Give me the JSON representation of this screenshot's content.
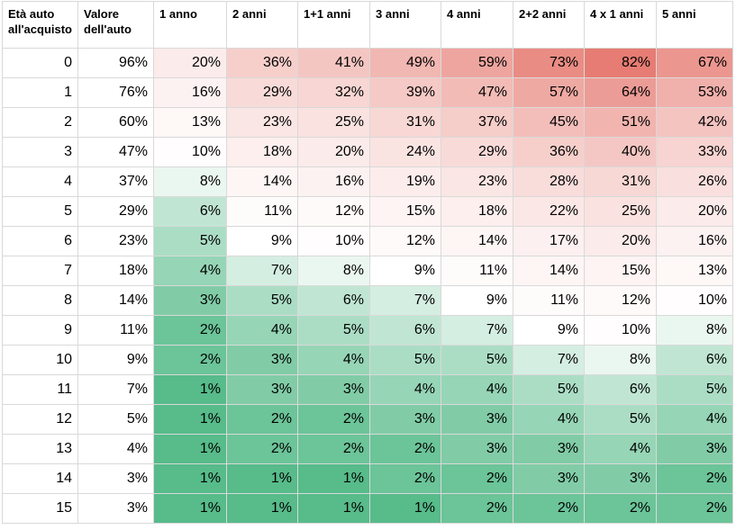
{
  "headers": [
    "Età auto all'acquisto",
    "Valore dell'auto",
    "1 anno",
    "2 anni",
    "1+1 anni",
    "3 anni",
    "4 anni",
    "2+2 anni",
    "4 x 1 anni",
    "5 anni"
  ],
  "rows": [
    [
      "0",
      "96%",
      "20%",
      "36%",
      "41%",
      "49%",
      "59%",
      "73%",
      "82%",
      "67%"
    ],
    [
      "1",
      "76%",
      "16%",
      "29%",
      "32%",
      "39%",
      "47%",
      "57%",
      "64%",
      "53%"
    ],
    [
      "2",
      "60%",
      "13%",
      "23%",
      "25%",
      "31%",
      "37%",
      "45%",
      "51%",
      "42%"
    ],
    [
      "3",
      "47%",
      "10%",
      "18%",
      "20%",
      "24%",
      "29%",
      "36%",
      "40%",
      "33%"
    ],
    [
      "4",
      "37%",
      "8%",
      "14%",
      "16%",
      "19%",
      "23%",
      "28%",
      "31%",
      "26%"
    ],
    [
      "5",
      "29%",
      "6%",
      "11%",
      "12%",
      "15%",
      "18%",
      "22%",
      "25%",
      "20%"
    ],
    [
      "6",
      "23%",
      "5%",
      "9%",
      "10%",
      "12%",
      "14%",
      "17%",
      "20%",
      "16%"
    ],
    [
      "7",
      "18%",
      "4%",
      "7%",
      "8%",
      "9%",
      "11%",
      "14%",
      "15%",
      "13%"
    ],
    [
      "8",
      "14%",
      "3%",
      "5%",
      "6%",
      "7%",
      "9%",
      "11%",
      "12%",
      "10%"
    ],
    [
      "9",
      "11%",
      "2%",
      "4%",
      "5%",
      "6%",
      "7%",
      "9%",
      "10%",
      "8%"
    ],
    [
      "10",
      "9%",
      "2%",
      "3%",
      "4%",
      "5%",
      "5%",
      "7%",
      "8%",
      "6%"
    ],
    [
      "11",
      "7%",
      "1%",
      "3%",
      "3%",
      "4%",
      "4%",
      "5%",
      "6%",
      "5%"
    ],
    [
      "12",
      "5%",
      "1%",
      "2%",
      "2%",
      "3%",
      "3%",
      "4%",
      "5%",
      "4%"
    ],
    [
      "13",
      "4%",
      "1%",
      "2%",
      "2%",
      "2%",
      "3%",
      "3%",
      "4%",
      "3%"
    ],
    [
      "14",
      "3%",
      "1%",
      "1%",
      "1%",
      "2%",
      "2%",
      "3%",
      "3%",
      "2%"
    ],
    [
      "15",
      "3%",
      "1%",
      "1%",
      "1%",
      "1%",
      "2%",
      "2%",
      "2%",
      "2%"
    ]
  ],
  "colors": {
    "low": "#57bb8a",
    "mid": "#ffffff",
    "high": "#e67c73",
    "grid": "#d9d9d9"
  }
}
